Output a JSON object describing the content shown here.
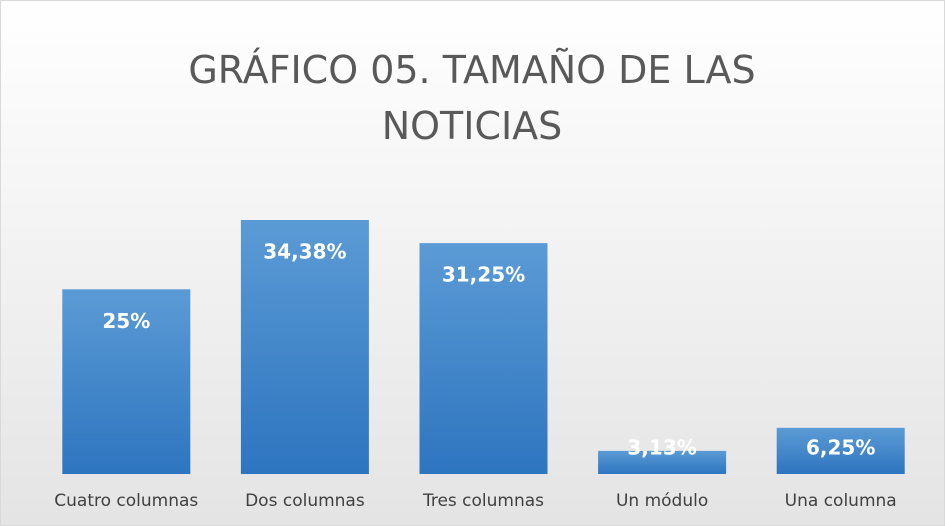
{
  "chart_data": {
    "type": "bar",
    "title": "GRÁFICO 05. TAMAÑO DE LAS NOTICIAS",
    "categories": [
      "Cuatro columnas",
      "Dos columnas",
      "Tres columnas",
      "Un módulo",
      "Una columna"
    ],
    "values": [
      25,
      34.38,
      31.25,
      3.13,
      6.25
    ],
    "value_labels": [
      "25%",
      "34,38%",
      "31,25%",
      "3,13%",
      "6,25%"
    ],
    "color": "#4a8fd4"
  }
}
